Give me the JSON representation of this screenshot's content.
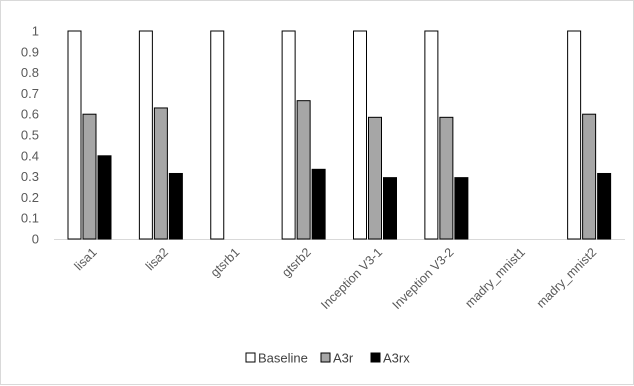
{
  "chart_data": {
    "type": "bar",
    "title": "",
    "xlabel": "",
    "ylabel": "",
    "categories": [
      "lisa1",
      "lisa2",
      "gtsrb1",
      "gtsrb2",
      "Inception V3-1",
      "Invеption V3-2",
      "madry_mnist1",
      "madry_mnist2"
    ],
    "series": [
      {
        "name": "Baseline",
        "color": "#ffffff",
        "values": [
          1,
          1,
          1,
          1,
          1,
          1,
          null,
          1
        ]
      },
      {
        "name": "A3r",
        "color": "#a6a6a6",
        "values": [
          0.6,
          0.63,
          null,
          0.665,
          0.585,
          0.585,
          null,
          0.6
        ]
      },
      {
        "name": "A3rx",
        "color": "#000000",
        "values": [
          0.4,
          0.315,
          null,
          0.335,
          0.295,
          0.295,
          null,
          0.315
        ]
      }
    ],
    "ylim": [
      0,
      1
    ],
    "yticks": [
      "0",
      "0.1",
      "0.2",
      "0.3",
      "0.4",
      "0.5",
      "0.6",
      "0.7",
      "0.8",
      "0.9",
      "1"
    ],
    "grid": false,
    "legend_position": "bottom"
  }
}
